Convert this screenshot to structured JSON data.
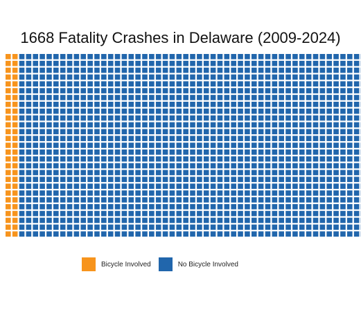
{
  "chart_data": {
    "type": "waffle",
    "title": "1668 Fatality Crashes in Delaware (2009-2024)",
    "total": 1668,
    "categories": [
      "Bicycle Involved",
      "No Bicycle Involved"
    ],
    "values": [
      54,
      1614
    ],
    "colors": [
      "#F7941D",
      "#2166AC"
    ],
    "rows": 27,
    "fill_order": "column-major, top-to-bottom",
    "legend_position": "bottom"
  }
}
